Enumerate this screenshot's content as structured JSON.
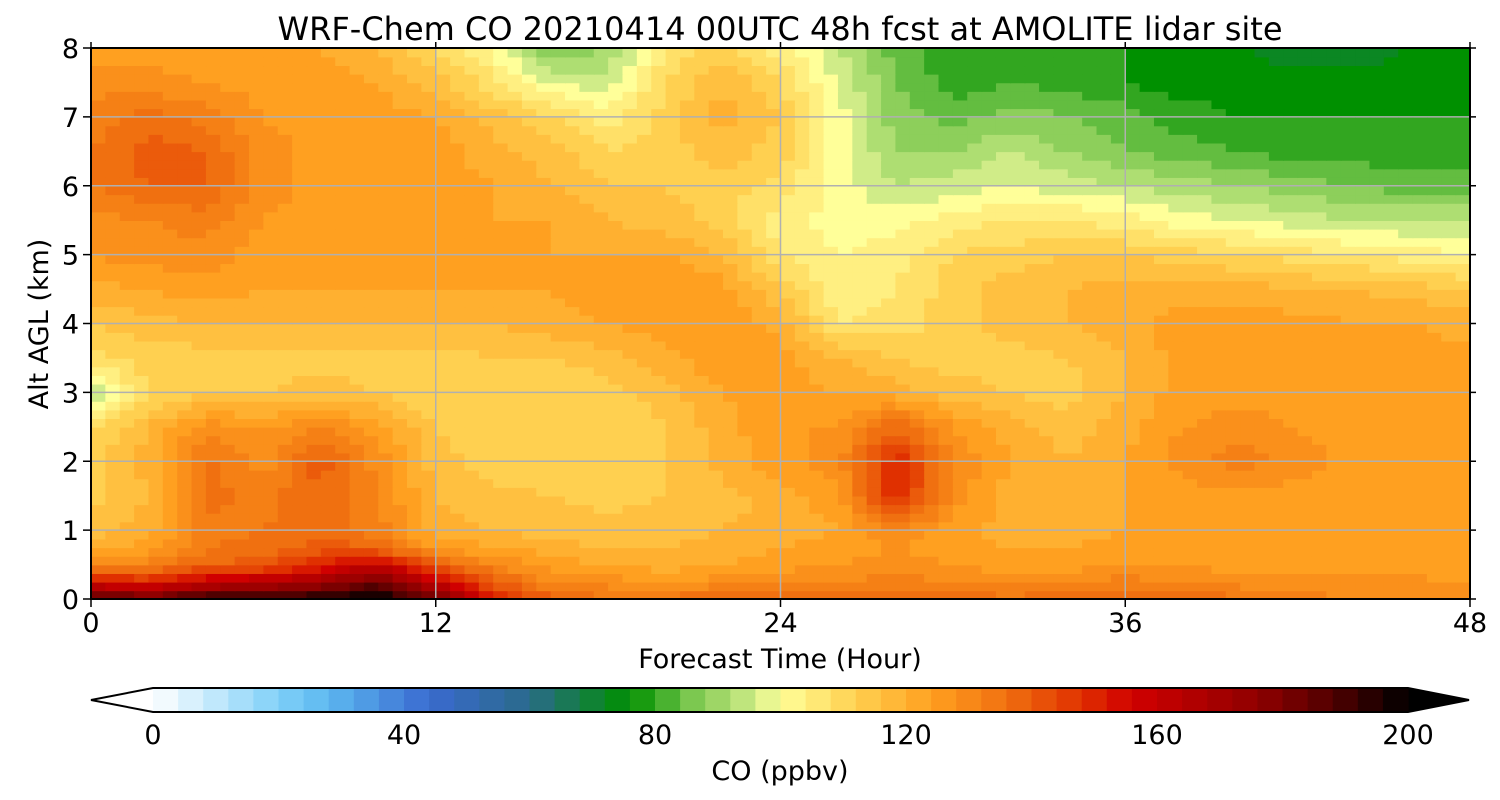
{
  "chart_data": {
    "type": "heatmap",
    "title": "WRF-Chem CO  20210414 00UTC 48h fcst at AMOLITE lidar site",
    "xlabel": "Forecast Time (Hour)",
    "ylabel": "Alt AGL (km)",
    "xlim": [
      0,
      48
    ],
    "ylim": [
      0,
      8
    ],
    "x_ticks": [
      "0",
      "12",
      "24",
      "36",
      "48"
    ],
    "y_ticks": [
      "0",
      "1",
      "2",
      "3",
      "4",
      "5",
      "6",
      "7",
      "8"
    ],
    "grid": true,
    "x_hours": [
      0,
      2,
      4,
      6,
      8,
      10,
      12,
      14,
      16,
      18,
      20,
      22,
      24,
      26,
      28,
      30,
      32,
      34,
      36,
      38,
      40,
      42,
      44,
      46,
      48
    ],
    "y_km": [
      0,
      0.25,
      0.5,
      0.75,
      1,
      1.5,
      2,
      2.5,
      3,
      3.5,
      4,
      4.5,
      5,
      5.5,
      6,
      6.5,
      7,
      7.5,
      8
    ],
    "co_ppbv": [
      [
        190,
        185,
        195,
        195,
        198,
        200,
        185,
        150,
        140,
        135,
        135,
        140,
        140,
        138,
        140,
        138,
        135,
        138,
        140,
        138,
        135,
        132,
        130,
        130,
        128
      ],
      [
        155,
        150,
        160,
        165,
        170,
        185,
        160,
        140,
        130,
        128,
        126,
        128,
        130,
        130,
        132,
        130,
        128,
        130,
        132,
        130,
        128,
        128,
        127,
        127,
        126
      ],
      [
        130,
        132,
        138,
        140,
        150,
        160,
        140,
        130,
        124,
        122,
        120,
        122,
        124,
        126,
        128,
        126,
        124,
        124,
        126,
        126,
        124,
        124,
        124,
        124,
        124
      ],
      [
        120,
        124,
        134,
        136,
        140,
        138,
        125,
        122,
        120,
        118,
        118,
        120,
        122,
        124,
        126,
        124,
        122,
        122,
        124,
        124,
        122,
        124,
        124,
        124,
        124
      ],
      [
        116,
        120,
        132,
        134,
        136,
        132,
        120,
        118,
        116,
        115,
        116,
        118,
        120,
        122,
        130,
        124,
        120,
        120,
        122,
        122,
        122,
        124,
        124,
        124,
        124
      ],
      [
        112,
        118,
        136,
        132,
        138,
        130,
        118,
        115,
        114,
        113,
        114,
        116,
        120,
        124,
        150,
        128,
        120,
        118,
        122,
        124,
        124,
        124,
        124,
        124,
        124
      ],
      [
        112,
        120,
        135,
        128,
        140,
        128,
        116,
        112,
        112,
        112,
        114,
        120,
        124,
        128,
        150,
        130,
        122,
        118,
        122,
        128,
        132,
        128,
        124,
        124,
        124
      ],
      [
        110,
        118,
        128,
        126,
        130,
        124,
        114,
        110,
        110,
        110,
        114,
        120,
        126,
        126,
        138,
        126,
        120,
        116,
        120,
        126,
        128,
        126,
        124,
        124,
        124
      ],
      [
        94,
        110,
        114,
        114,
        116,
        114,
        110,
        110,
        110,
        112,
        116,
        122,
        124,
        122,
        120,
        116,
        114,
        112,
        118,
        124,
        124,
        124,
        124,
        124,
        124
      ],
      [
        108,
        112,
        112,
        112,
        112,
        112,
        112,
        114,
        114,
        116,
        120,
        126,
        124,
        118,
        114,
        112,
        112,
        114,
        118,
        124,
        124,
        124,
        124,
        124,
        124
      ],
      [
        114,
        116,
        118,
        118,
        118,
        118,
        118,
        118,
        120,
        122,
        124,
        126,
        120,
        106,
        108,
        112,
        116,
        118,
        120,
        124,
        124,
        124,
        122,
        122,
        120
      ],
      [
        120,
        122,
        124,
        122,
        122,
        122,
        122,
        122,
        122,
        124,
        126,
        124,
        114,
        102,
        106,
        112,
        116,
        118,
        120,
        120,
        120,
        118,
        118,
        116,
        114
      ],
      [
        126,
        128,
        128,
        124,
        124,
        124,
        124,
        122,
        122,
        122,
        122,
        118,
        106,
        102,
        104,
        110,
        112,
        114,
        114,
        112,
        110,
        108,
        106,
        104,
        102
      ],
      [
        128,
        130,
        132,
        126,
        124,
        124,
        124,
        122,
        122,
        118,
        116,
        112,
        104,
        100,
        100,
        104,
        106,
        106,
        104,
        100,
        98,
        96,
        94,
        94,
        94
      ],
      [
        134,
        138,
        138,
        128,
        124,
        124,
        124,
        122,
        118,
        114,
        114,
        112,
        108,
        100,
        94,
        96,
        98,
        96,
        94,
        92,
        90,
        88,
        86,
        84,
        84
      ],
      [
        134,
        140,
        138,
        128,
        124,
        124,
        124,
        120,
        116,
        110,
        112,
        116,
        112,
        100,
        90,
        90,
        94,
        90,
        86,
        84,
        82,
        80,
        80,
        80,
        80
      ],
      [
        132,
        136,
        132,
        126,
        124,
        124,
        122,
        116,
        110,
        104,
        112,
        120,
        114,
        100,
        88,
        84,
        88,
        86,
        84,
        80,
        78,
        78,
        78,
        78,
        78
      ],
      [
        128,
        128,
        126,
        124,
        124,
        122,
        116,
        108,
        98,
        96,
        110,
        118,
        110,
        98,
        86,
        80,
        82,
        80,
        78,
        76,
        76,
        76,
        76,
        76,
        76
      ],
      [
        124,
        124,
        122,
        122,
        122,
        118,
        110,
        100,
        86,
        90,
        106,
        112,
        104,
        94,
        84,
        80,
        80,
        80,
        78,
        76,
        74,
        72,
        72,
        74,
        76
      ]
    ]
  },
  "colorbar": {
    "label": "CO  (ppbv)",
    "min": 0,
    "max": 200,
    "step": 4,
    "ticks": [
      "0",
      "40",
      "80",
      "120",
      "160",
      "200"
    ],
    "extend": "both",
    "anchors": [
      {
        "v": 0,
        "c": "#ffffff"
      },
      {
        "v": 20,
        "c": "#80d0f8"
      },
      {
        "v": 28,
        "c": "#5cb8f0"
      },
      {
        "v": 44,
        "c": "#3a6ad0"
      },
      {
        "v": 60,
        "c": "#2a6a8a"
      },
      {
        "v": 76,
        "c": "#009000"
      },
      {
        "v": 86,
        "c": "#7cc850"
      },
      {
        "v": 96,
        "c": "#d0ec88"
      },
      {
        "v": 100,
        "c": "#ffff99"
      },
      {
        "v": 112,
        "c": "#ffd050"
      },
      {
        "v": 124,
        "c": "#ffa020"
      },
      {
        "v": 136,
        "c": "#f07010"
      },
      {
        "v": 148,
        "c": "#e03000"
      },
      {
        "v": 156,
        "c": "#d00000"
      },
      {
        "v": 176,
        "c": "#900000"
      },
      {
        "v": 188,
        "c": "#500000"
      },
      {
        "v": 200,
        "c": "#000000"
      }
    ]
  }
}
